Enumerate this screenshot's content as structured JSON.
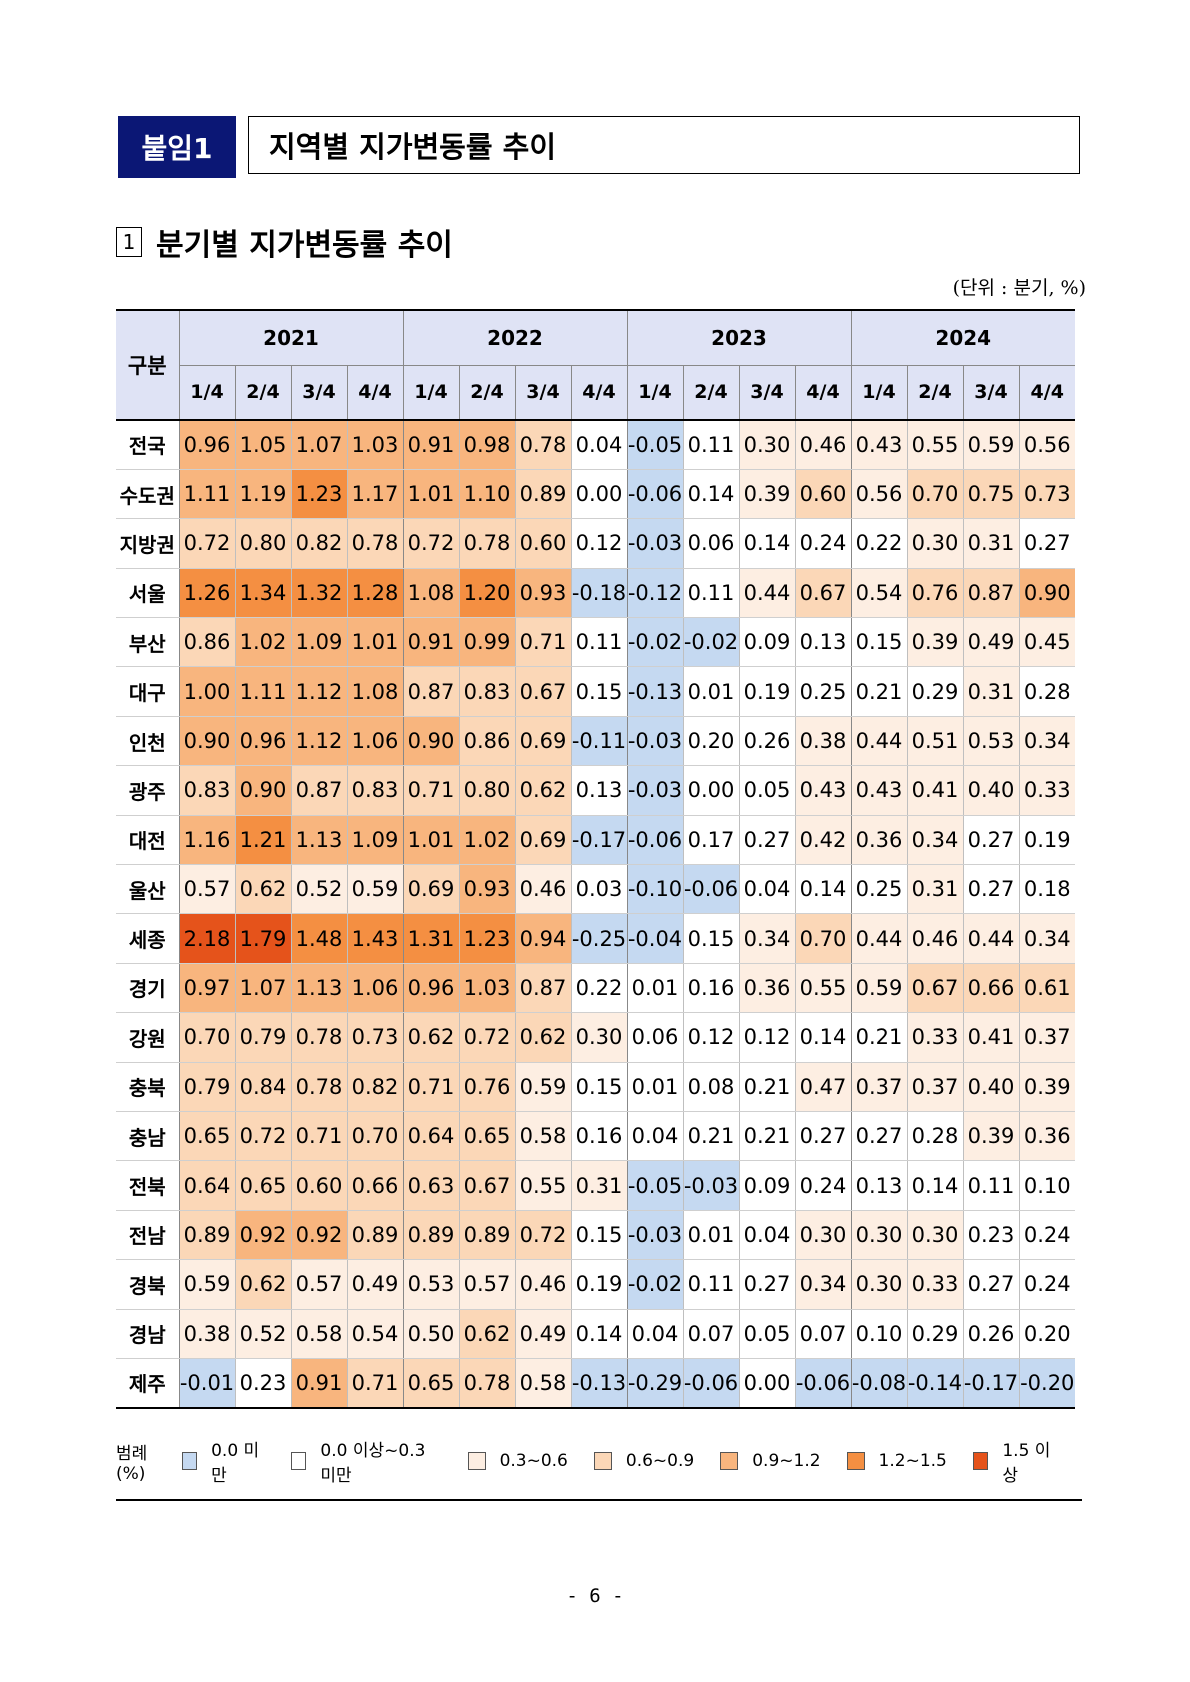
{
  "header": {
    "badge": "붙임1",
    "title": "지역별 지가변동률 추이"
  },
  "section": {
    "number": "1",
    "title": "분기별 지가변동률 추이"
  },
  "unit": "(단위 : 분기, %)",
  "table": {
    "corner": "구분",
    "years": [
      "2021",
      "2022",
      "2023",
      "2024"
    ],
    "quarters": [
      "1/4",
      "2/4",
      "3/4",
      "4/4"
    ],
    "rows": [
      {
        "region": "전국",
        "values": [
          "0.96",
          "1.05",
          "1.07",
          "1.03",
          "0.91",
          "0.98",
          "0.78",
          "0.04",
          "-0.05",
          "0.11",
          "0.30",
          "0.46",
          "0.43",
          "0.55",
          "0.59",
          "0.56"
        ]
      },
      {
        "region": "수도권",
        "values": [
          "1.11",
          "1.19",
          "1.23",
          "1.17",
          "1.01",
          "1.10",
          "0.89",
          "0.00",
          "-0.06",
          "0.14",
          "0.39",
          "0.60",
          "0.56",
          "0.70",
          "0.75",
          "0.73"
        ]
      },
      {
        "region": "지방권",
        "values": [
          "0.72",
          "0.80",
          "0.82",
          "0.78",
          "0.72",
          "0.78",
          "0.60",
          "0.12",
          "-0.03",
          "0.06",
          "0.14",
          "0.24",
          "0.22",
          "0.30",
          "0.31",
          "0.27"
        ]
      },
      {
        "region": "서울",
        "values": [
          "1.26",
          "1.34",
          "1.32",
          "1.28",
          "1.08",
          "1.20",
          "0.93",
          "-0.18",
          "-0.12",
          "0.11",
          "0.44",
          "0.67",
          "0.54",
          "0.76",
          "0.87",
          "0.90"
        ]
      },
      {
        "region": "부산",
        "values": [
          "0.86",
          "1.02",
          "1.09",
          "1.01",
          "0.91",
          "0.99",
          "0.71",
          "0.11",
          "-0.02",
          "-0.02",
          "0.09",
          "0.13",
          "0.15",
          "0.39",
          "0.49",
          "0.45"
        ]
      },
      {
        "region": "대구",
        "values": [
          "1.00",
          "1.11",
          "1.12",
          "1.08",
          "0.87",
          "0.83",
          "0.67",
          "0.15",
          "-0.13",
          "0.01",
          "0.19",
          "0.25",
          "0.21",
          "0.29",
          "0.31",
          "0.28"
        ]
      },
      {
        "region": "인천",
        "values": [
          "0.90",
          "0.96",
          "1.12",
          "1.06",
          "0.90",
          "0.86",
          "0.69",
          "-0.11",
          "-0.03",
          "0.20",
          "0.26",
          "0.38",
          "0.44",
          "0.51",
          "0.53",
          "0.34"
        ]
      },
      {
        "region": "광주",
        "values": [
          "0.83",
          "0.90",
          "0.87",
          "0.83",
          "0.71",
          "0.80",
          "0.62",
          "0.13",
          "-0.03",
          "0.00",
          "0.05",
          "0.43",
          "0.43",
          "0.41",
          "0.40",
          "0.33"
        ]
      },
      {
        "region": "대전",
        "values": [
          "1.16",
          "1.21",
          "1.13",
          "1.09",
          "1.01",
          "1.02",
          "0.69",
          "-0.17",
          "-0.06",
          "0.17",
          "0.27",
          "0.42",
          "0.36",
          "0.34",
          "0.27",
          "0.19"
        ]
      },
      {
        "region": "울산",
        "values": [
          "0.57",
          "0.62",
          "0.52",
          "0.59",
          "0.69",
          "0.93",
          "0.46",
          "0.03",
          "-0.10",
          "-0.06",
          "0.04",
          "0.14",
          "0.25",
          "0.31",
          "0.27",
          "0.18"
        ]
      },
      {
        "region": "세종",
        "values": [
          "2.18",
          "1.79",
          "1.48",
          "1.43",
          "1.31",
          "1.23",
          "0.94",
          "-0.25",
          "-0.04",
          "0.15",
          "0.34",
          "0.70",
          "0.44",
          "0.46",
          "0.44",
          "0.34"
        ]
      },
      {
        "region": "경기",
        "values": [
          "0.97",
          "1.07",
          "1.13",
          "1.06",
          "0.96",
          "1.03",
          "0.87",
          "0.22",
          "0.01",
          "0.16",
          "0.36",
          "0.55",
          "0.59",
          "0.67",
          "0.66",
          "0.61"
        ]
      },
      {
        "region": "강원",
        "values": [
          "0.70",
          "0.79",
          "0.78",
          "0.73",
          "0.62",
          "0.72",
          "0.62",
          "0.30",
          "0.06",
          "0.12",
          "0.12",
          "0.14",
          "0.21",
          "0.33",
          "0.41",
          "0.37"
        ]
      },
      {
        "region": "충북",
        "values": [
          "0.79",
          "0.84",
          "0.78",
          "0.82",
          "0.71",
          "0.76",
          "0.59",
          "0.15",
          "0.01",
          "0.08",
          "0.21",
          "0.47",
          "0.37",
          "0.37",
          "0.40",
          "0.39"
        ]
      },
      {
        "region": "충남",
        "values": [
          "0.65",
          "0.72",
          "0.71",
          "0.70",
          "0.64",
          "0.65",
          "0.58",
          "0.16",
          "0.04",
          "0.21",
          "0.21",
          "0.27",
          "0.27",
          "0.28",
          "0.39",
          "0.36"
        ]
      },
      {
        "region": "전북",
        "values": [
          "0.64",
          "0.65",
          "0.60",
          "0.66",
          "0.63",
          "0.67",
          "0.55",
          "0.31",
          "-0.05",
          "-0.03",
          "0.09",
          "0.24",
          "0.13",
          "0.14",
          "0.11",
          "0.10"
        ]
      },
      {
        "region": "전남",
        "values": [
          "0.89",
          "0.92",
          "0.92",
          "0.89",
          "0.89",
          "0.89",
          "0.72",
          "0.15",
          "-0.03",
          "0.01",
          "0.04",
          "0.30",
          "0.30",
          "0.30",
          "0.23",
          "0.24"
        ]
      },
      {
        "region": "경북",
        "values": [
          "0.59",
          "0.62",
          "0.57",
          "0.49",
          "0.53",
          "0.57",
          "0.46",
          "0.19",
          "-0.02",
          "0.11",
          "0.27",
          "0.34",
          "0.30",
          "0.33",
          "0.27",
          "0.24"
        ]
      },
      {
        "region": "경남",
        "values": [
          "0.38",
          "0.52",
          "0.58",
          "0.54",
          "0.50",
          "0.62",
          "0.49",
          "0.14",
          "0.04",
          "0.07",
          "0.05",
          "0.07",
          "0.10",
          "0.29",
          "0.26",
          "0.20"
        ]
      },
      {
        "region": "제주",
        "values": [
          "-0.01",
          "0.23",
          "0.91",
          "0.71",
          "0.65",
          "0.78",
          "0.58",
          "-0.13",
          "-0.29",
          "-0.06",
          "0.00",
          "-0.06",
          "-0.08",
          "-0.14",
          "-0.17",
          "-0.20"
        ]
      }
    ]
  },
  "legend": {
    "label": "범례(%)",
    "items": [
      {
        "label": "0.0 미만",
        "color": "#c5d9f1"
      },
      {
        "label": "0.0 이상~0.3 미만",
        "color": "#ffffff"
      },
      {
        "label": "0.3~0.6",
        "color": "#fdeee2"
      },
      {
        "label": "0.6~0.9",
        "color": "#fbd7b7"
      },
      {
        "label": "0.9~1.2",
        "color": "#f8b57e"
      },
      {
        "label": "1.2~1.5",
        "color": "#f48f42"
      },
      {
        "label": "1.5 이상",
        "color": "#e5531b"
      }
    ]
  },
  "page_number": "- 6 -"
}
